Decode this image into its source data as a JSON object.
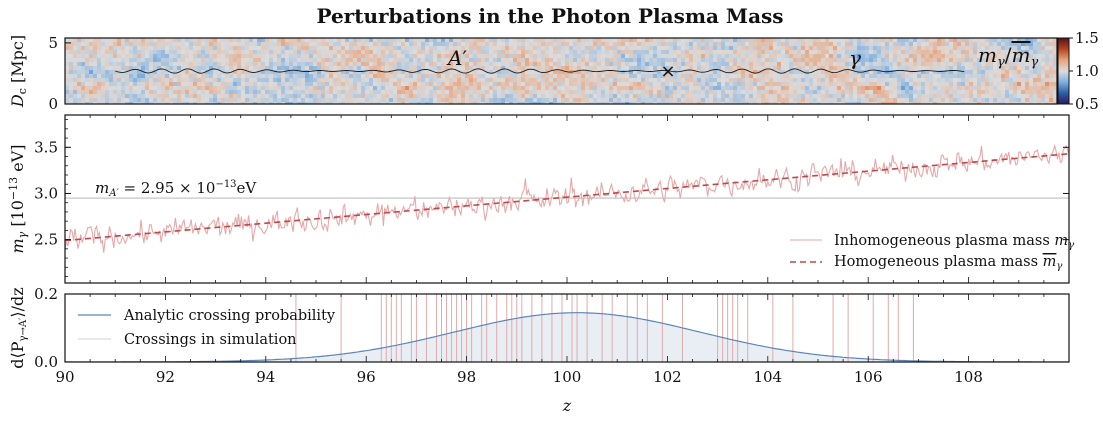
{
  "figure": {
    "title": "Perturbations in the Photon Plasma Mass"
  },
  "chart_data": [
    {
      "panel": "density-map",
      "type": "heatmap",
      "ylabel": "D_c [Mpc]",
      "ylabel_main": "D",
      "ylabel_sub": "c",
      "ylabel_unit": " [Mpc]",
      "ylim": [
        0,
        5.4
      ],
      "yticks": [
        0,
        5
      ],
      "xlim": [
        90,
        110
      ],
      "colorbar": {
        "label": "m_γ / m̄_γ",
        "label_main": "m",
        "label_sub": "γ",
        "label_sep": "/",
        "label_bar": "m",
        "label_bar_sub": "γ",
        "ticks": [
          "0.5",
          "1.0",
          "1.5"
        ],
        "range": [
          0.5,
          1.5
        ],
        "colors": [
          "#2b1b5c",
          "#2d5fa8",
          "#7fb0e0",
          "#dcdcdc",
          "#e8a37c",
          "#b3441e",
          "#5c0e1c"
        ]
      },
      "annotations": {
        "photon_label": "A′",
        "photon_label_main": "A",
        "photon_label_prime": "′",
        "gamma_label": "γ",
        "crossing_marker": "×"
      },
      "path_x_range": [
        91,
        108.2
      ],
      "crossing_z": 102.0
    },
    {
      "panel": "plasma-mass",
      "type": "line",
      "ylabel": "m_γ [10^-13 eV]",
      "ylabel_main": "m",
      "ylabel_sub": "γ",
      "ylabel_unit_pre": " [10",
      "ylabel_exp": "−13",
      "ylabel_unit_post": " eV]",
      "ylim": [
        2.03,
        3.85
      ],
      "yticks": [
        2.5,
        3.0,
        3.5
      ],
      "ytick_labels": [
        "2.5",
        "3.0",
        "3.5"
      ],
      "xlim": [
        90,
        110
      ],
      "hline": {
        "value": 2.95,
        "label": "m_A′ = 2.95 × 10^-13 eV",
        "label_main": "m",
        "label_sub": "A′",
        "label_value": " = 2.95 × 10",
        "label_exp": "−13",
        "label_unit": "eV"
      },
      "series": [
        {
          "name": "Inhomogeneous plasma mass m_γ",
          "name_text": "Inhomogeneous plasma mass ",
          "name_sym": "m",
          "name_sub": "γ",
          "style": "solid",
          "color": "#e6a9a9",
          "trend_start": 2.49,
          "trend_end": 3.43,
          "noise_amplitude": 0.1
        },
        {
          "name": "Homogeneous plasma mass m̄_γ",
          "name_text": "Homogeneous plasma mass ",
          "name_sym": "m",
          "name_sub": "γ",
          "style": "dashed",
          "color": "#c0474b",
          "x": [
            90,
            110
          ],
          "y": [
            2.49,
            3.43
          ]
        }
      ],
      "legend_position": "bottom-right"
    },
    {
      "panel": "crossing-probability",
      "type": "area",
      "ylabel": "d⟨P_γ→A′⟩/dz",
      "ylabel_pre": "d⟨P",
      "ylabel_sub": "γ→A′",
      "ylabel_post": "⟩/dz",
      "xlabel": "z",
      "ylim": [
        0,
        0.2
      ],
      "yticks": [
        0.0,
        0.2
      ],
      "ytick_labels": [
        "0.0",
        "0.2"
      ],
      "xlim": [
        90,
        110
      ],
      "xticks": [
        90,
        92,
        94,
        96,
        98,
        100,
        102,
        104,
        106,
        108
      ],
      "xtick_labels": [
        "90",
        "92",
        "94",
        "96",
        "98",
        "100",
        "102",
        "104",
        "106",
        "108"
      ],
      "series": [
        {
          "name": "Analytic crossing probability",
          "type": "gaussian",
          "color": "#5b86b7",
          "fill": "#e9eef4",
          "peak_x": 100.2,
          "peak_y": 0.145,
          "sigma": 2.45
        },
        {
          "name": "Crossings in simulation",
          "type": "vlines",
          "color": "#e2aaaa",
          "x": [
            94.6,
            95.5,
            96.3,
            96.4,
            96.5,
            96.6,
            96.7,
            96.9,
            97.0,
            97.2,
            97.4,
            97.5,
            97.6,
            97.7,
            97.8,
            97.9,
            98.0,
            98.1,
            98.3,
            98.4,
            98.6,
            98.8,
            98.9,
            99.0,
            99.1,
            99.3,
            99.5,
            99.7,
            99.9,
            100.1,
            100.2,
            100.4,
            100.7,
            100.9,
            101.2,
            101.4,
            101.6,
            101.9,
            102.3,
            103.0,
            103.1,
            103.2,
            103.3,
            103.4,
            103.6,
            104.1,
            104.5,
            105.3,
            105.6,
            106.1,
            106.4,
            106.6,
            106.9
          ]
        }
      ],
      "legend_position": "top-left"
    }
  ]
}
